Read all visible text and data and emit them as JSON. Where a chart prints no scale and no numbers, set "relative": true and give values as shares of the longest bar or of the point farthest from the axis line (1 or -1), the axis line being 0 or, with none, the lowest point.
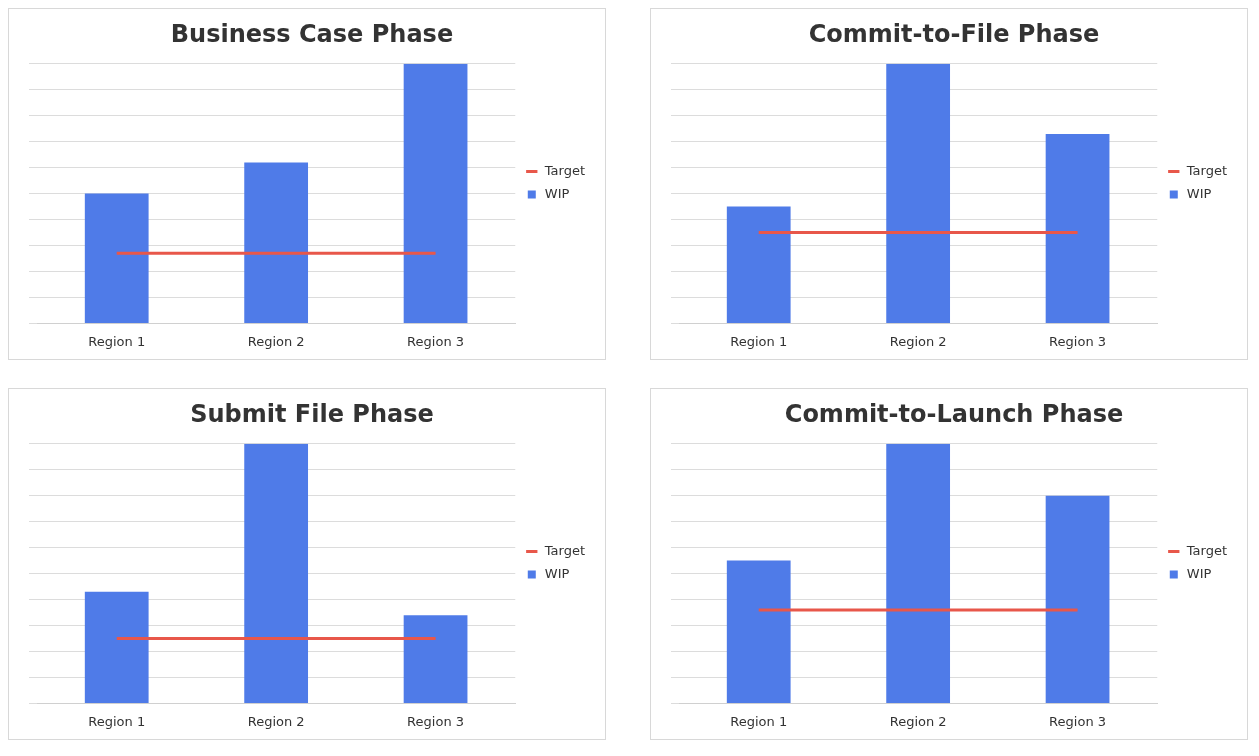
{
  "chart_data": [
    {
      "type": "bar",
      "title": "Business Case Phase",
      "categories": [
        "Region 1",
        "Region 2",
        "Region 3"
      ],
      "relative": true,
      "grid": "y",
      "legend": "right",
      "marker": "none",
      "series": [
        {
          "name": "WIP",
          "color": "#4f7be8",
          "values": [
            0.5,
            0.62,
            1
          ]
        },
        {
          "name": "Target",
          "type": "line",
          "color": "#e8574a",
          "values": [
            0.27,
            0.27,
            0.27
          ]
        }
      ]
    },
    {
      "type": "bar",
      "title": "Commit-to-File Phase",
      "categories": [
        "Region 1",
        "Region 2",
        "Region 3"
      ],
      "relative": true,
      "grid": "y",
      "legend": "right",
      "marker": "none",
      "series": [
        {
          "name": "WIP",
          "color": "#4f7be8",
          "values": [
            0.45,
            1,
            0.73
          ]
        },
        {
          "name": "Target",
          "type": "line",
          "color": "#e8574a",
          "values": [
            0.35,
            0.35,
            0.35
          ]
        }
      ]
    },
    {
      "type": "bar",
      "title": "Submit File Phase",
      "categories": [
        "Region 1",
        "Region 2",
        "Region 3"
      ],
      "relative": true,
      "grid": "y",
      "legend": "right",
      "marker": "none",
      "series": [
        {
          "name": "WIP",
          "color": "#4f7be8",
          "values": [
            0.43,
            1,
            0.34
          ]
        },
        {
          "name": "Target",
          "type": "line",
          "color": "#e8574a",
          "values": [
            0.25,
            0.25,
            0.25
          ]
        }
      ]
    },
    {
      "type": "bar",
      "title": "Commit-to-Launch Phase",
      "categories": [
        "Region 1",
        "Region 2",
        "Region 3"
      ],
      "relative": true,
      "grid": "y",
      "legend": "right",
      "marker": "none",
      "series": [
        {
          "name": "WIP",
          "color": "#4f7be8",
          "values": [
            0.55,
            1,
            0.8
          ]
        },
        {
          "name": "Target",
          "type": "line",
          "color": "#e8574a",
          "values": [
            0.36,
            0.36,
            0.36
          ]
        }
      ]
    }
  ]
}
